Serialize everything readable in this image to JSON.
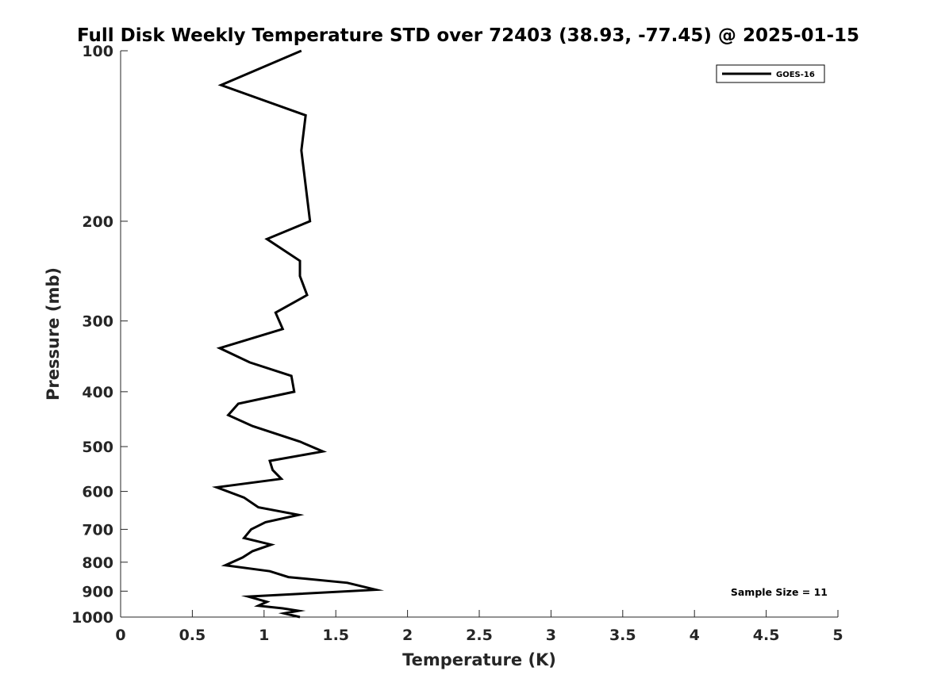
{
  "chart_data": {
    "type": "line",
    "title": "Full Disk Weekly Temperature STD over 72403 (38.93, -77.45) @ 2025-01-15",
    "xlabel": "Temperature (K)",
    "ylabel": "Pressure (mb)",
    "xlim": [
      0,
      5
    ],
    "ylim": [
      100,
      1000
    ],
    "yscale": "log",
    "y_reversed": true,
    "grid": false,
    "legend_position": "top-right",
    "x_ticks": [
      "0",
      "0.5",
      "1",
      "1.5",
      "2",
      "2.5",
      "3",
      "3.5",
      "4",
      "4.5",
      "5"
    ],
    "y_ticks": [
      "100",
      "200",
      "300",
      "400",
      "500",
      "600",
      "700",
      "800",
      "900",
      "1000"
    ],
    "annotation": "Sample Size = 11",
    "series": [
      {
        "name": "GOES-16",
        "color": "#000000",
        "x": [
          1.26,
          0.7,
          1.29,
          1.26,
          1.32,
          1.02,
          1.25,
          1.25,
          1.3,
          1.08,
          1.13,
          0.69,
          0.9,
          1.19,
          1.21,
          0.82,
          0.75,
          0.92,
          1.25,
          1.41,
          1.04,
          1.06,
          1.12,
          0.67,
          0.86,
          0.96,
          1.24,
          1.01,
          0.91,
          0.86,
          1.05,
          0.92,
          0.85,
          0.73,
          1.04,
          1.17,
          1.58,
          1.78,
          0.89,
          1.02,
          0.96,
          1.13,
          1.24,
          1.14,
          1.25
        ],
        "y": [
          100,
          115,
          130,
          150,
          200,
          215,
          235,
          250,
          270,
          290,
          310,
          335,
          355,
          375,
          400,
          420,
          440,
          460,
          490,
          510,
          530,
          550,
          570,
          590,
          615,
          640,
          660,
          680,
          700,
          725,
          745,
          765,
          785,
          810,
          830,
          850,
          870,
          895,
          920,
          940,
          955,
          965,
          975,
          985,
          1000
        ]
      }
    ]
  }
}
